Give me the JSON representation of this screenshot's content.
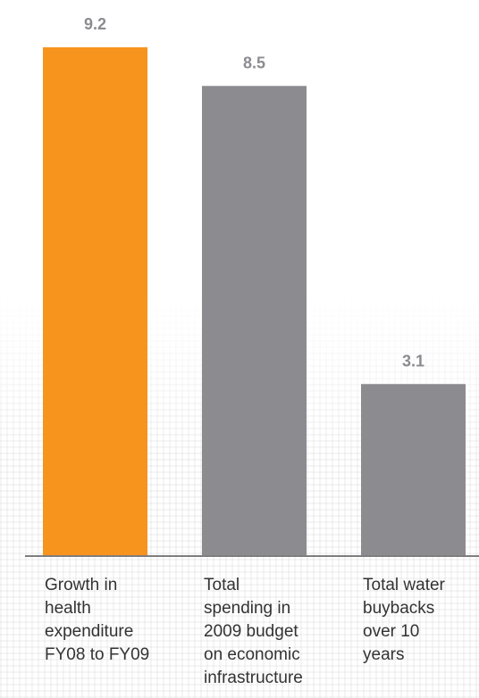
{
  "chart_data": {
    "type": "bar",
    "categories": [
      "Growth in\nhealth\nexpenditure\nFY08 to FY09",
      "Total\nspending in\n2009 budget\non economic\ninfrastructure",
      "Total water\nbuybacks\nover 10\nyears"
    ],
    "values": [
      9.2,
      8.5,
      3.1
    ],
    "value_labels": [
      "9.2",
      "8.5",
      "3.1"
    ],
    "colors": [
      "#f7941d",
      "#8c8b90",
      "#8c8b90"
    ],
    "title": "",
    "xlabel": "",
    "ylabel": "",
    "grid": false,
    "legend": "none"
  }
}
